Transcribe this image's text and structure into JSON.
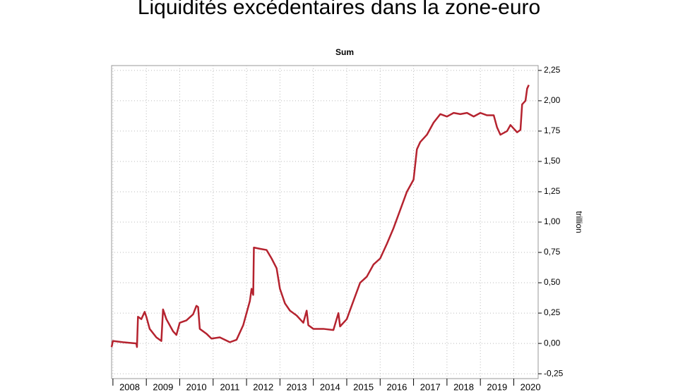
{
  "header": {
    "title": "Liquidités excédentaires dans la zone-euro"
  },
  "chart_data": {
    "type": "line",
    "title": "Sum",
    "y_label": "trillion",
    "x": [
      2007.96,
      2008.0,
      2008.3,
      2008.7,
      2008.72,
      2008.75,
      2008.85,
      2008.95,
      2009.0,
      2009.1,
      2009.3,
      2009.45,
      2009.5,
      2009.6,
      2009.8,
      2009.9,
      2010.0,
      2010.2,
      2010.4,
      2010.5,
      2010.55,
      2010.6,
      2010.8,
      2010.95,
      2011.2,
      2011.5,
      2011.7,
      2011.9,
      2012.0,
      2012.1,
      2012.15,
      2012.2,
      2012.22,
      2012.4,
      2012.6,
      2012.75,
      2012.9,
      2013.0,
      2013.15,
      2013.3,
      2013.5,
      2013.7,
      2013.8,
      2013.85,
      2014.0,
      2014.3,
      2014.6,
      2014.75,
      2014.8,
      2015.0,
      2015.2,
      2015.4,
      2015.6,
      2015.8,
      2016.0,
      2016.2,
      2016.4,
      2016.6,
      2016.8,
      2017.0,
      2017.1,
      2017.2,
      2017.4,
      2017.6,
      2017.8,
      2018.0,
      2018.2,
      2018.4,
      2018.6,
      2018.8,
      2019.0,
      2019.2,
      2019.4,
      2019.5,
      2019.6,
      2019.8,
      2019.9,
      2020.1,
      2020.2,
      2020.25,
      2020.35,
      2020.4,
      2020.45
    ],
    "series": [
      {
        "name": "Sum",
        "color": "#b5232f",
        "values": [
          -0.03,
          0.02,
          0.01,
          0.0,
          -0.03,
          0.22,
          0.2,
          0.26,
          0.22,
          0.12,
          0.05,
          0.02,
          0.28,
          0.2,
          0.1,
          0.07,
          0.17,
          0.19,
          0.24,
          0.31,
          0.3,
          0.12,
          0.08,
          0.04,
          0.05,
          0.01,
          0.03,
          0.15,
          0.25,
          0.35,
          0.45,
          0.4,
          0.79,
          0.78,
          0.77,
          0.7,
          0.62,
          0.45,
          0.33,
          0.27,
          0.23,
          0.17,
          0.27,
          0.15,
          0.12,
          0.12,
          0.11,
          0.25,
          0.14,
          0.2,
          0.35,
          0.5,
          0.55,
          0.65,
          0.7,
          0.82,
          0.95,
          1.1,
          1.25,
          1.35,
          1.6,
          1.66,
          1.72,
          1.82,
          1.89,
          1.87,
          1.9,
          1.89,
          1.9,
          1.87,
          1.9,
          1.88,
          1.88,
          1.78,
          1.72,
          1.75,
          1.8,
          1.74,
          1.76,
          1.97,
          2.0,
          2.1,
          2.13
        ]
      }
    ],
    "xlim": [
      2007.96,
      2020.73
    ],
    "xticks": [
      2008,
      2009,
      2010,
      2011,
      2012,
      2013,
      2014,
      2015,
      2016,
      2017,
      2018,
      2019,
      2020
    ],
    "ylim": [
      -0.29,
      2.29
    ],
    "yticks": [
      {
        "value": -0.25,
        "label": "-0,25"
      },
      {
        "value": 0,
        "label": "0,00"
      },
      {
        "value": 0.25,
        "label": "0,25"
      },
      {
        "value": 0.5,
        "label": "0,50"
      },
      {
        "value": 0.75,
        "label": "0,75"
      },
      {
        "value": 1.0,
        "label": "1,00"
      },
      {
        "value": 1.25,
        "label": "1,25"
      },
      {
        "value": 1.5,
        "label": "1,50"
      },
      {
        "value": 1.75,
        "label": "1,75"
      },
      {
        "value": 2.0,
        "label": "2,00"
      },
      {
        "value": 2.25,
        "label": "2,25"
      }
    ],
    "grid": true
  }
}
